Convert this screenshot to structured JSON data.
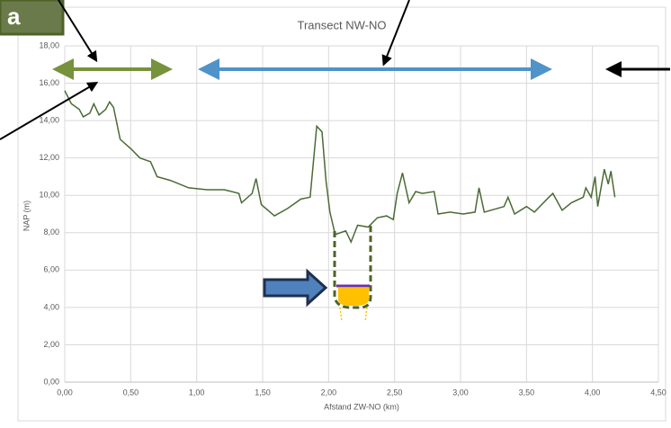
{
  "chart_data": {
    "type": "line",
    "title": "Transect NW-NO",
    "panel_label": "a",
    "x_label": "Afstand ZW-NO (km)",
    "y_label": "NAP (m)",
    "xlim": [
      0,
      4.5
    ],
    "ylim": [
      0,
      18
    ],
    "grid": true,
    "xticks": [
      {
        "value": 0,
        "label": "0,00"
      },
      {
        "value": 0.5,
        "label": "0,50"
      },
      {
        "value": 1,
        "label": "1,00"
      },
      {
        "value": 1.5,
        "label": "1,50"
      },
      {
        "value": 2,
        "label": "2,00"
      },
      {
        "value": 2.5,
        "label": "2,50"
      },
      {
        "value": 3,
        "label": "3,00"
      },
      {
        "value": 3.5,
        "label": "3,50"
      },
      {
        "value": 4,
        "label": "4,00"
      },
      {
        "value": 4.5,
        "label": "4,50"
      }
    ],
    "yticks": [
      {
        "value": 0,
        "label": "0,00"
      },
      {
        "value": 2,
        "label": "2,00"
      },
      {
        "value": 4,
        "label": "4,00"
      },
      {
        "value": 6,
        "label": "6,00"
      },
      {
        "value": 8,
        "label": "8,00"
      },
      {
        "value": 10,
        "label": "10,00"
      },
      {
        "value": 12,
        "label": "12,00"
      },
      {
        "value": 14,
        "label": "14,00"
      },
      {
        "value": 16,
        "label": "16,00"
      },
      {
        "value": 18,
        "label": "18,00"
      }
    ],
    "series": [
      {
        "color": "#4a6b35",
        "x": [
          0,
          0.05,
          0.11,
          0.14,
          0.19,
          0.22,
          0.26,
          0.31,
          0.34,
          0.37,
          0.42,
          0.5,
          0.57,
          0.65,
          0.7,
          0.8,
          0.94,
          1.08,
          1.21,
          1.32,
          1.34,
          1.42,
          1.45,
          1.49,
          1.59,
          1.69,
          1.79,
          1.86,
          1.91,
          1.95,
          1.98,
          2.01,
          2.05,
          2.13,
          2.17,
          2.22,
          2.3,
          2.37,
          2.44,
          2.49,
          2.52,
          2.56,
          2.61,
          2.66,
          2.71,
          2.8,
          2.83,
          2.92,
          3.02,
          3.11,
          3.14,
          3.18,
          3.33,
          3.36,
          3.41,
          3.5,
          3.56,
          3.67,
          3.7,
          3.77,
          3.84,
          3.93,
          3.95,
          3.99,
          4.02,
          4.04,
          4.09,
          4.12,
          4.14,
          4.17
        ],
        "values": [
          15.6,
          14.9,
          14.6,
          14.2,
          14.4,
          14.9,
          14.3,
          14.6,
          15.0,
          14.7,
          13.0,
          12.5,
          12.0,
          11.8,
          11.0,
          10.8,
          10.4,
          10.3,
          10.3,
          10.1,
          9.6,
          10.1,
          10.9,
          9.5,
          8.9,
          9.3,
          9.8,
          9.9,
          13.7,
          13.4,
          10.8,
          9.1,
          7.9,
          8.1,
          7.5,
          8.4,
          8.3,
          8.8,
          8.9,
          8.7,
          10.1,
          11.2,
          9.6,
          10.2,
          10.1,
          10.2,
          9.0,
          9.1,
          9.0,
          9.1,
          10.4,
          9.1,
          9.4,
          9.9,
          9.0,
          9.4,
          9.1,
          9.9,
          10.1,
          9.2,
          9.6,
          9.9,
          10.4,
          9.9,
          11.0,
          9.4,
          11.4,
          10.6,
          11.3,
          9.9
        ]
      }
    ]
  }
}
